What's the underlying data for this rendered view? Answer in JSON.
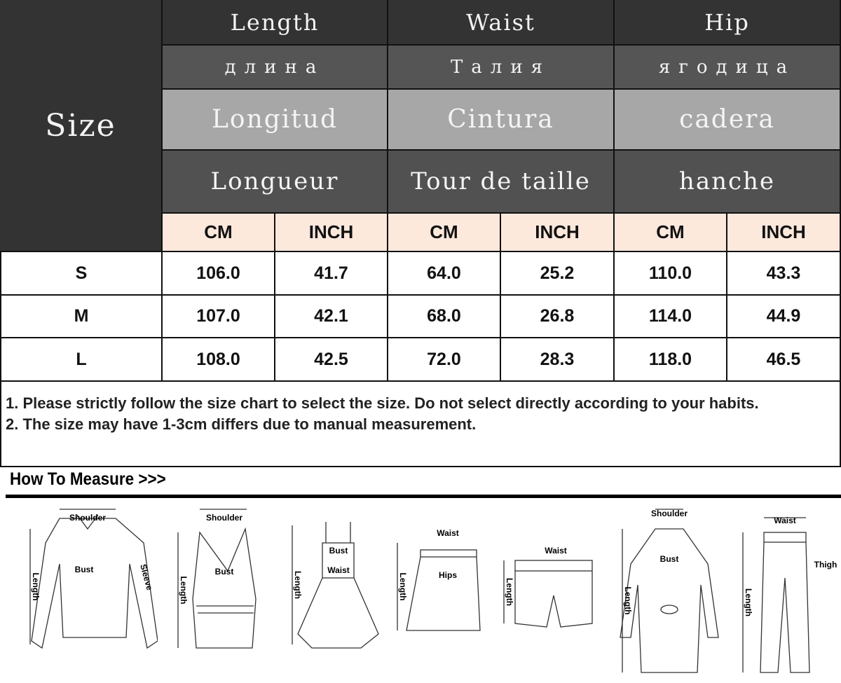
{
  "table": {
    "size_label": "Size",
    "columns": [
      {
        "en": "Length",
        "ru": "длина",
        "es": "Longitud",
        "fr": "Longueur"
      },
      {
        "en": "Waist",
        "ru": "Талия",
        "es": "Cintura",
        "fr": "Tour de taille"
      },
      {
        "en": "Hip",
        "ru": "ягодица",
        "es": "cadera",
        "fr": "hanche"
      }
    ],
    "units": [
      "CM",
      "INCH",
      "CM",
      "INCH",
      "CM",
      "INCH"
    ],
    "rows": [
      {
        "size": "S",
        "values": [
          "106.0",
          "41.7",
          "64.0",
          "25.2",
          "110.0",
          "43.3"
        ]
      },
      {
        "size": "M",
        "values": [
          "107.0",
          "42.1",
          "68.0",
          "26.8",
          "114.0",
          "44.9"
        ]
      },
      {
        "size": "L",
        "values": [
          "108.0",
          "42.5",
          "72.0",
          "28.3",
          "118.0",
          "46.5"
        ]
      }
    ]
  },
  "notes": [
    "1. Please strictly follow the size chart to select the size. Do not select directly according to your habits.",
    "2. The size may have 1-3cm differs due to manual measurement."
  ],
  "how_to_measure": {
    "title": "How To Measure >>>",
    "labels": {
      "shoulder": "Shoulder",
      "bust": "Bust",
      "sleeve": "Sleeve",
      "length": "Length",
      "waist": "Waist",
      "hips": "Hips",
      "thigh": "Thigh"
    }
  },
  "colors": {
    "header_dark": "#333333",
    "header_mid": "#555555",
    "header_light": "#a7a7a7",
    "unit_row": "#fde8dc"
  }
}
